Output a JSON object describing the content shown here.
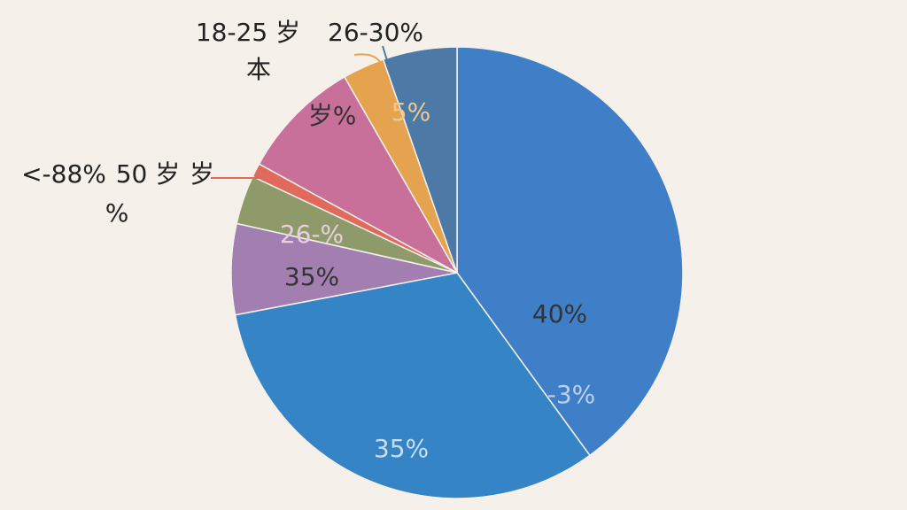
{
  "chart_data": {
    "type": "pie",
    "values": [
      40,
      32,
      6.5,
      3.5,
      1,
      8.7,
      3,
      5.3
    ],
    "colors": [
      "#3f7fc8",
      "#3584c6",
      "#a27fb0",
      "#8f9a6a",
      "#e06a5c",
      "#c9709a",
      "#e5a350",
      "#4d79a6"
    ],
    "annotations": [
      "40%",
      "-3%",
      "35%",
      "35%",
      "26-%",
      "岁%",
      "5%",
      "18-25 岁",
      "26-30%",
      "本",
      "<-88%",
      "50 岁",
      "岁",
      "%"
    ]
  }
}
